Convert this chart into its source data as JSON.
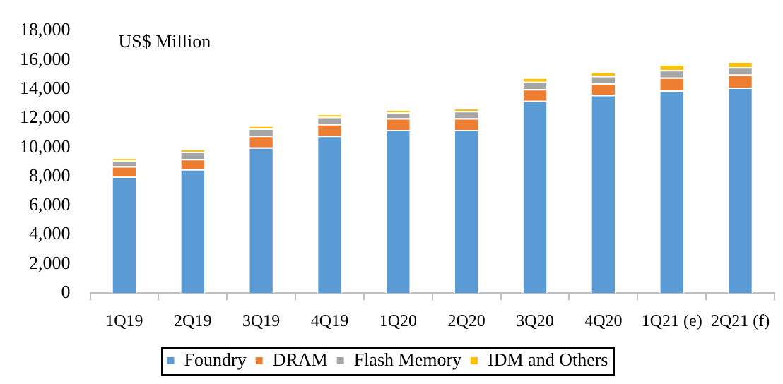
{
  "chart_data": {
    "type": "bar",
    "stacked": true,
    "ylabel": "US$ Million",
    "categories": [
      "1Q19",
      "2Q19",
      "3Q19",
      "4Q19",
      "1Q20",
      "2Q20",
      "3Q20",
      "4Q20",
      "1Q21 (e)",
      "2Q21 (f)"
    ],
    "series": [
      {
        "name": "Foundry",
        "color": "#5b9bd5",
        "values": [
          8000,
          8500,
          10000,
          10800,
          11200,
          11200,
          13200,
          13600,
          13900,
          14100
        ]
      },
      {
        "name": "DRAM",
        "color": "#ed7d31",
        "values": [
          700,
          700,
          800,
          800,
          800,
          800,
          800,
          800,
          900,
          900
        ]
      },
      {
        "name": "Flash Memory",
        "color": "#a5a5a5",
        "values": [
          400,
          500,
          500,
          500,
          400,
          500,
          500,
          500,
          500,
          500
        ]
      },
      {
        "name": "IDM and Others",
        "color": "#ffc000",
        "values": [
          200,
          200,
          200,
          200,
          200,
          200,
          300,
          300,
          400,
          400
        ]
      }
    ],
    "ylim": [
      0,
      18000
    ],
    "yticks": [
      0,
      {
        "value": 2000,
        "label": "2,000"
      },
      {
        "value": 4000,
        "label": "4,000"
      },
      {
        "value": 6000,
        "label": "6,000"
      },
      {
        "value": 8000,
        "label": "8,000"
      },
      {
        "value": 10000,
        "label": "10,000"
      },
      {
        "value": 12000,
        "label": "12,000"
      },
      {
        "value": 14000,
        "label": "14,000"
      },
      {
        "value": 16000,
        "label": "16,000"
      },
      {
        "value": 18000,
        "label": "18,000"
      }
    ],
    "grid": false,
    "legend": "bottom"
  }
}
